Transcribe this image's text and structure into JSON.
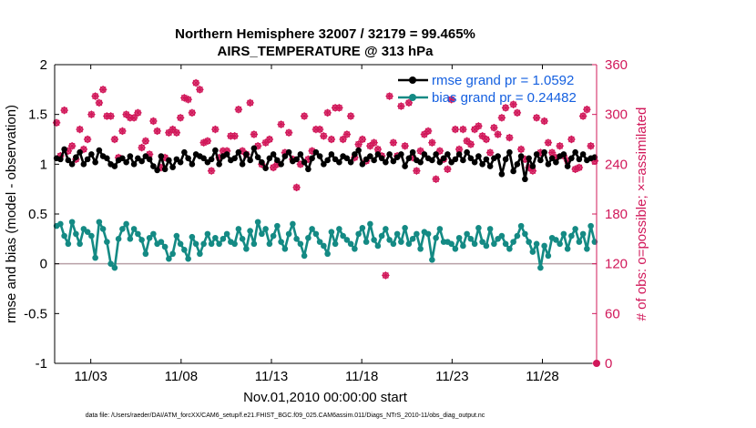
{
  "chart_data": {
    "type": "line",
    "title_line1": "Northern Hemisphere 32007 / 32179 = 99.465%",
    "title_line2": "AIRS_TEMPERATURE @ 313 hPa",
    "xlabel": "Nov.01,2010 00:00:00 start",
    "ylabel_left": "rmse and bias (model - observation)",
    "ylabel_right": "# of obs: o=possible; ×=assimilated",
    "footer": "data file: /Users/raeder/DAI/ATM_forcXX/CAM6_setup/f.e21.FHIST_BGC.f09_025.CAM6assim.011/Diags_NTrS_2010-11/obs_diag_output.nc",
    "x_tick_labels": [
      "11/03",
      "11/08",
      "11/13",
      "11/18",
      "11/23",
      "11/28"
    ],
    "x_tick_days": [
      3,
      8,
      13,
      18,
      23,
      28
    ],
    "xlim": [
      1.0,
      31.0
    ],
    "ylim_left": [
      -1,
      2
    ],
    "ylim_right": [
      0,
      360
    ],
    "y_left_ticks": [
      -1,
      -0.5,
      0,
      0.5,
      1,
      1.5,
      2
    ],
    "y_left_tick_labels": [
      "-1",
      "-0.5",
      "0",
      "0.5",
      "1",
      "1.5",
      "2"
    ],
    "y_right_ticks": [
      0,
      60,
      120,
      180,
      240,
      300,
      360
    ],
    "y_right_tick_labels": [
      "0",
      "60",
      "120",
      "180",
      "240",
      "300",
      "360"
    ],
    "colors": {
      "rmse": "#000000",
      "bias": "#148a84",
      "obs": "#d1185a",
      "zero_line": "#b8a0a6",
      "legend_text": "#1560e0",
      "axis_right": "#d1185a"
    },
    "legend": [
      {
        "name": "rmse grand pr = 1.0592",
        "series": "rmse"
      },
      {
        "name": "bias grand pr = 0.24482",
        "series": "bias"
      }
    ],
    "series": [
      {
        "name": "rmse",
        "values": [
          1.06,
          1.05,
          1.15,
          1.04,
          1.0,
          1.07,
          1.12,
          1.0,
          1.05,
          1.1,
          1.02,
          1.14,
          1.08,
          1.06,
          1.0,
          0.98,
          1.04,
          1.06,
          1.02,
          1.08,
          1.0,
          1.06,
          1.03,
          1.08,
          1.05,
          0.98,
          0.94,
          1.08,
          0.95,
          1.04,
          0.97,
          1.05,
          1.02,
          1.12,
          1.06,
          1.0,
          1.1,
          1.08,
          1.06,
          1.02,
          1.05,
          1.14,
          1.0,
          1.08,
          1.1,
          1.04,
          1.06,
          1.12,
          1.0,
          1.1,
          1.04,
          1.16,
          1.07,
          1.02,
          0.96,
          1.06,
          1.1,
          1.04,
          1.0,
          1.08,
          1.12,
          1.03,
          1.05,
          1.1,
          1.02,
          0.95,
          1.06,
          1.12,
          1.08,
          1.0,
          1.04,
          1.1,
          1.05,
          1.02,
          1.08,
          1.06,
          1.02,
          1.1,
          1.14,
          1.0,
          1.05,
          1.08,
          1.04,
          1.1,
          1.06,
          1.02,
          1.1,
          1.03,
          1.07,
          1.1,
          0.98,
          1.06,
          1.12,
          1.04,
          1.02,
          1.1,
          1.06,
          1.04,
          1.1,
          1.02,
          1.06,
          1.1,
          1.02,
          1.05,
          1.1,
          1.04,
          1.12,
          1.06,
          1.02,
          1.08,
          1.0,
          1.05,
          0.98,
          1.06,
          1.08,
          0.9,
          1.05,
          1.12,
          0.93,
          1.0,
          1.08,
          0.85,
          1.06,
          0.98,
          1.1,
          1.04,
          1.12,
          1.0,
          1.06,
          1.02,
          1.08,
          1.1,
          0.98,
          1.06,
          1.12,
          1.05,
          1.1,
          1.04,
          1.06,
          1.07
        ]
      },
      {
        "name": "bias",
        "values": [
          0.38,
          0.4,
          0.28,
          0.2,
          0.42,
          0.3,
          0.2,
          0.35,
          0.32,
          0.28,
          0.06,
          0.42,
          0.35,
          0.22,
          0.0,
          -0.04,
          0.25,
          0.35,
          0.4,
          0.25,
          0.35,
          0.3,
          0.24,
          0.1,
          0.26,
          0.3,
          0.2,
          0.22,
          0.17,
          0.05,
          0.1,
          0.28,
          0.2,
          0.14,
          0.05,
          0.27,
          0.2,
          0.1,
          0.2,
          0.3,
          0.2,
          0.26,
          0.2,
          0.25,
          0.3,
          0.22,
          0.2,
          0.35,
          0.25,
          0.15,
          0.33,
          0.2,
          0.42,
          0.3,
          0.35,
          0.2,
          0.28,
          0.38,
          0.22,
          0.15,
          0.3,
          0.4,
          0.25,
          0.2,
          0.08,
          0.26,
          0.35,
          0.3,
          0.22,
          0.18,
          0.1,
          0.32,
          0.2,
          0.35,
          0.28,
          0.24,
          0.2,
          0.15,
          0.3,
          0.36,
          0.22,
          0.4,
          0.24,
          0.18,
          0.28,
          0.35,
          0.24,
          0.2,
          0.3,
          0.22,
          0.36,
          0.2,
          0.25,
          0.3,
          0.15,
          0.32,
          0.3,
          0.04,
          0.26,
          0.35,
          0.22,
          0.22,
          0.2,
          0.15,
          0.26,
          0.18,
          0.3,
          0.25,
          0.2,
          0.36,
          0.22,
          0.18,
          0.35,
          0.2,
          0.25,
          0.28,
          0.2,
          0.15,
          0.22,
          0.28,
          0.38,
          0.3,
          0.22,
          0.12,
          0.2,
          -0.04,
          0.18,
          0.08,
          0.26,
          0.24,
          0.2,
          0.3,
          0.15,
          0.28,
          0.35,
          0.22,
          0.3,
          0.15,
          0.38,
          0.22
        ]
      },
      {
        "name": "obs_count",
        "axis": "right",
        "values": [
          290,
          250,
          305,
          256,
          262,
          246,
          282,
          258,
          270,
          300,
          322,
          314,
          330,
          298,
          298,
          270,
          248,
          280,
          300,
          296,
          296,
          302,
          260,
          268,
          252,
          292,
          280,
          236,
          248,
          278,
          282,
          278,
          296,
          320,
          318,
          302,
          338,
          330,
          266,
          268,
          232,
          282,
          248,
          256,
          256,
          274,
          274,
          306,
          256,
          252,
          314,
          276,
          262,
          240,
          266,
          270,
          236,
          240,
          288,
          254,
          278,
          246,
          212,
          240,
          298,
          246,
          256,
          282,
          282,
          274,
          302,
          270,
          308,
          308,
          270,
          276,
          298,
          248,
          264,
          270,
          244,
          262,
          266,
          258,
          250,
          106,
          322,
          266,
          250,
          310,
          262,
          314,
          248,
          232,
          256,
          276,
          280,
          266,
          222,
          256,
          246,
          234,
          318,
          282,
          258,
          282,
          268,
          264,
          282,
          286,
          274,
          270,
          254,
          284,
          276,
          296,
          308,
          272,
          312,
          302,
          258,
          246,
          236,
          232,
          296,
          254,
          292,
          266,
          254,
          248,
          262,
          250,
          244,
          270,
          234,
          236,
          298,
          306,
          262,
          244
        ]
      }
    ]
  }
}
